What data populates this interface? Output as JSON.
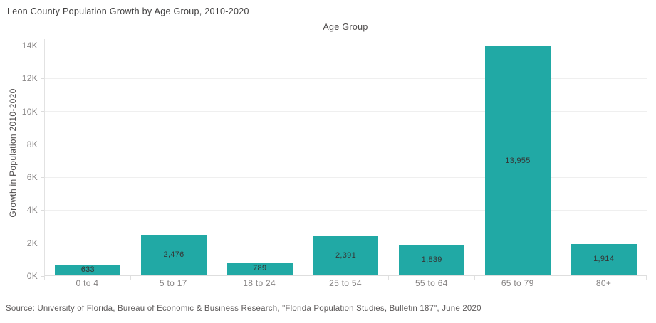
{
  "chart_data": {
    "type": "bar",
    "title": "Leon County Population Growth by Age Group, 2010-2020",
    "x_axis_title": "Age Group",
    "ylabel": "Growth in Population 2010-2020",
    "xlabel": "",
    "categories": [
      "0 to 4",
      "5 to 17",
      "18 to 24",
      "25 to 54",
      "55 to 64",
      "65 to 79",
      "80+"
    ],
    "values": [
      633,
      2476,
      789,
      2391,
      1839,
      13955,
      1914
    ],
    "value_labels": [
      "633",
      "2,476",
      "789",
      "2,391",
      "1,839",
      "13,955",
      "1,914"
    ],
    "y_tick_values": [
      0,
      2000,
      4000,
      6000,
      8000,
      10000,
      12000,
      14000
    ],
    "y_tick_labels": [
      "0K",
      "2K",
      "4K",
      "6K",
      "8K",
      "10K",
      "12K",
      "14K"
    ],
    "ylim": [
      0,
      14000
    ],
    "grid": "horizontal",
    "legend": "none",
    "bar_color": "#21a9a5"
  },
  "source_note": "Source: University of Florida, Bureau of Economic & Business Research, \"Florida Population Studies, Bulletin 187\", June 2020",
  "colors": {
    "bar": "#21a9a5",
    "gridline": "#efefef",
    "axis_line": "#e2e2e2",
    "title_text": "#3f3e3e",
    "tick_text": "#8a8787",
    "value_text": "#363636",
    "source_text": "#5e5b5b"
  }
}
